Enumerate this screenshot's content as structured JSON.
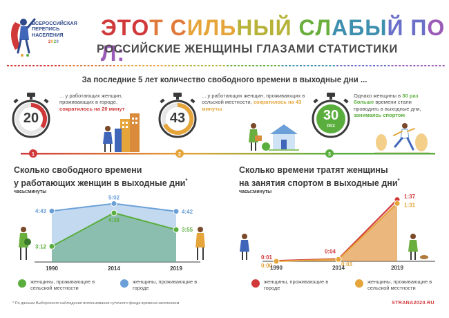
{
  "header": {
    "logo_text": "ВСЕРОССИЙСКАЯ ПЕРЕПИСЬ НАСЕЛЕНИЯ",
    "logo_year": "2020",
    "title_line1": "ЭТОТ СИЛЬНЫЙ СЛАБЫЙ ПОЛ:",
    "title_line2": "РОССИЙСКИЕ ЖЕНЩИНЫ ГЛАЗАМИ СТАТИСТИКИ"
  },
  "colors": {
    "red": "#d0383a",
    "orange": "#e5a53a",
    "green": "#5aae3e",
    "blue": "#6a9fd8",
    "title_gradient": [
      "#d0383a",
      "#e07a3a",
      "#e5a53a",
      "#b7b33a",
      "#6aae3e",
      "#3f8fae",
      "#6a6fc8",
      "#9a5cb6"
    ]
  },
  "subtitle": "За последние 5 лет количество свободного времени в выходные дни ...",
  "stats": [
    {
      "number": "20",
      "marker": "1",
      "text_plain": "... у работающих женщин, проживающих в городе,",
      "text_highlight": "сократилось на 20 минут",
      "color": "#d0383a",
      "icon": "stopwatch-icon"
    },
    {
      "number": "43",
      "marker": "2",
      "text_plain": "... у работающих женщин, проживающих в сельской местности,",
      "text_highlight": "сократилось на 43 минуты",
      "color": "#e5a53a",
      "icon": "stopwatch-icon"
    },
    {
      "number": "30",
      "unit": "РАЗ",
      "marker": "3",
      "text_a": "Однако женщины в",
      "text_b": "30 раз больше",
      "text_c": "времени стали проводить в выходные дни,",
      "text_d": "занимаясь спортом",
      "color": "#5aae3e",
      "icon": "stopwatch-icon"
    }
  ],
  "left_chart_title": "Сколько свободного времени у работающих женщин в выходные дни",
  "left_chart_title_line1": "Сколько свободного времени",
  "left_chart_title_line2": "у работающих женщин в выходные дни",
  "left_chart_title_mark": "*",
  "right_chart_title_line1": "Сколько времени тратят женщины",
  "right_chart_title_line2": "на занятия спортом в выходные дни",
  "right_chart_title_mark": "*",
  "units_label": "часы:минуты",
  "chart_data": [
    {
      "type": "area",
      "categories": [
        "1990",
        "2014",
        "2019"
      ],
      "series": [
        {
          "name": "женщины, проживающие в сельской местности",
          "values": [
            "3:12",
            "4:38",
            "3:55"
          ],
          "minutes": [
            192,
            278,
            235
          ],
          "color": "#5aae3e"
        },
        {
          "name": "женщины, проживающие в городе",
          "values": [
            "4:43",
            "5:02",
            "4:42"
          ],
          "minutes": [
            283,
            302,
            282
          ],
          "color": "#6a9fd8"
        }
      ]
    },
    {
      "type": "area",
      "categories": [
        "1990",
        "2014",
        "2019"
      ],
      "series": [
        {
          "name": "женщины, проживающие в городе",
          "values": [
            "0:01",
            "0:04",
            "1:37"
          ],
          "minutes": [
            1,
            4,
            97
          ],
          "color": "#d0383a"
        },
        {
          "name": "женщины, проживающие в сельской местности",
          "values": [
            "0:00",
            "0:03",
            "1:31"
          ],
          "minutes": [
            0,
            3,
            91
          ],
          "color": "#e5a53a"
        }
      ]
    }
  ],
  "legend_left": [
    {
      "label": "женщины, проживающие в сельской местности",
      "color": "#5aae3e"
    },
    {
      "label": "женщины, проживающие в городе",
      "color": "#6a9fd8"
    }
  ],
  "legend_right": [
    {
      "label": "женщины, проживающие в городе",
      "color": "#d0383a"
    },
    {
      "label": "женщины, проживающие в сельской местности",
      "color": "#e5a53a"
    }
  ],
  "footnote": "* По данным Выборочного наблюдения использования суточного фонда времени населением",
  "site": "STRANA2020.RU"
}
